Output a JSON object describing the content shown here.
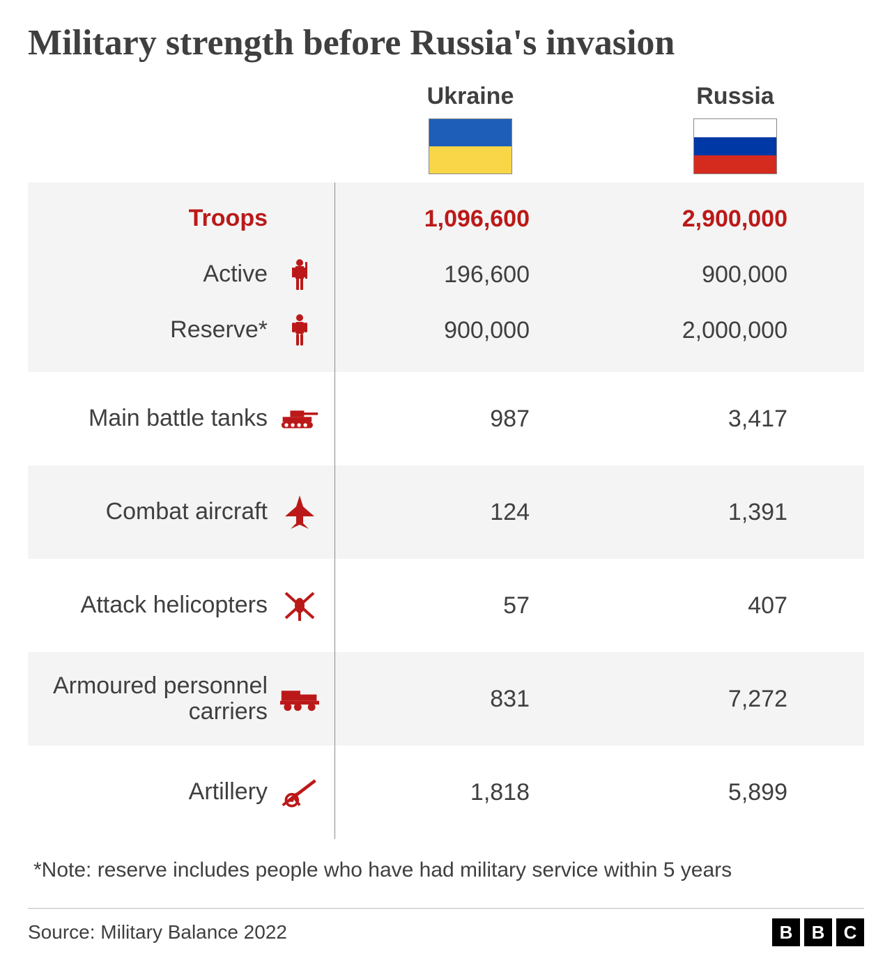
{
  "title": "Military strength before Russia's invasion",
  "countries": [
    {
      "name": "Ukraine",
      "flag_colors": [
        "#1f5eb8",
        "#f8d648"
      ]
    },
    {
      "name": "Russia",
      "flag_colors": [
        "#ffffff",
        "#0039a6",
        "#d52b1e"
      ]
    }
  ],
  "icon_color": "#bb1919",
  "accent_color": "#bb1919",
  "text_color": "#3f3f3f",
  "shaded_row_bg": "#f4f4f4",
  "fonts": {
    "title_family": "Times New Roman, Georgia, serif",
    "body_family": "-apple-system, Segoe UI, Helvetica, Arial, sans-serif",
    "title_size_pt": 39,
    "body_size_pt": 25
  },
  "sections": {
    "troops": {
      "header_label": "Troops",
      "header_values": [
        "1,096,600",
        "2,900,000"
      ],
      "rows": [
        {
          "label": "Active",
          "icon": "soldier",
          "values": [
            "196,600",
            "900,000"
          ]
        },
        {
          "label": "Reserve*",
          "icon": "person",
          "values": [
            "900,000",
            "2,000,000"
          ]
        }
      ]
    },
    "categories": [
      {
        "label": "Main battle tanks",
        "icon": "tank",
        "values": [
          "987",
          "3,417"
        ],
        "shaded": false
      },
      {
        "label": "Combat aircraft",
        "icon": "jet",
        "values": [
          "124",
          "1,391"
        ],
        "shaded": true
      },
      {
        "label": "Attack helicopters",
        "icon": "helicopter",
        "values": [
          "57",
          "407"
        ],
        "shaded": false
      },
      {
        "label": "Armoured personnel carriers",
        "icon": "apc",
        "values": [
          "831",
          "7,272"
        ],
        "shaded": true
      },
      {
        "label": "Artillery",
        "icon": "artillery",
        "values": [
          "1,818",
          "5,899"
        ],
        "shaded": false
      }
    ]
  },
  "footnote": "*Note: reserve includes people who have had military service within 5 years",
  "source": "Source: Military Balance 2022",
  "attribution": "BBC"
}
